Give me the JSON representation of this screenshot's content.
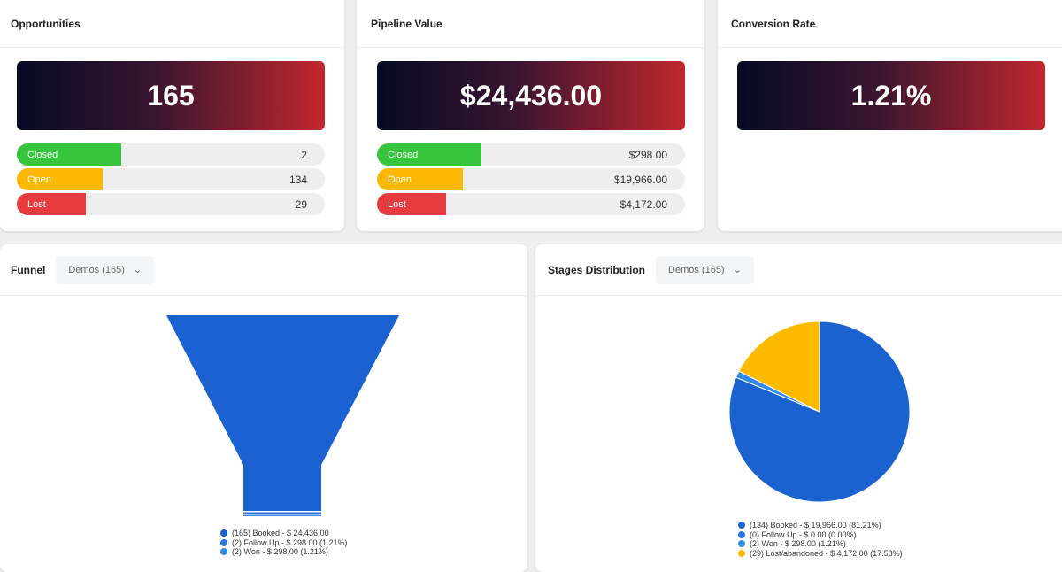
{
  "cards": [
    {
      "title": "Opportunities",
      "value": "165",
      "bars": [
        {
          "label": "Closed",
          "value": "2",
          "fill": 0.34,
          "color": "#36c53c"
        },
        {
          "label": "Open",
          "value": "134",
          "fill": 0.28,
          "color": "#fdb803"
        },
        {
          "label": "Lost",
          "value": "29",
          "fill": 0.225,
          "color": "#e63b3f"
        }
      ]
    },
    {
      "title": "Pipeline Value",
      "value": "$24,436.00",
      "bars": [
        {
          "label": "Closed",
          "value": "$298.00",
          "fill": 0.34,
          "color": "#36c53c"
        },
        {
          "label": "Open",
          "value": "$19,966.00",
          "fill": 0.28,
          "color": "#fdb803"
        },
        {
          "label": "Lost",
          "value": "$4,172.00",
          "fill": 0.225,
          "color": "#e63b3f"
        }
      ]
    },
    {
      "title": "Conversion Rate",
      "value": "1.21%"
    }
  ],
  "funnel": {
    "title": "Funnel",
    "dropdown": "Demos (165)",
    "legend": [
      {
        "text": "(165) Booked - $ 24,436.00",
        "color": "#1a5fcf"
      },
      {
        "text": "(2) Follow Up - $ 298.00 (1.21%)",
        "color": "#2a75e0"
      },
      {
        "text": "(2) Won - $ 298.00 (1.21%)",
        "color": "#3389ea"
      }
    ]
  },
  "stages": {
    "title": "Stages Distribution",
    "dropdown": "Demos (165)",
    "legend": [
      {
        "text": "(134) Booked - $ 19,966.00 (81.21%)",
        "color": "#1a62d0"
      },
      {
        "text": "(0) Follow Up - $ 0.00 (0.00%)",
        "color": "#2a75e0"
      },
      {
        "text": "(2) Won - $ 298.00 (1.21%)",
        "color": "#3389ea"
      },
      {
        "text": "(29) Lost/abandoned - $ 4,172.00 (17.58%)",
        "color": "#fdbb00"
      }
    ]
  },
  "chart_data": [
    {
      "type": "funnel",
      "categories": [
        "Booked",
        "Follow Up",
        "Won"
      ],
      "values": [
        165,
        2,
        2
      ]
    },
    {
      "type": "pie",
      "categories": [
        "Booked",
        "Follow Up",
        "Won",
        "Lost/abandoned"
      ],
      "values": [
        81.21,
        0,
        1.21,
        17.58
      ],
      "colors": [
        "#1a62d0",
        "#2a75e0",
        "#3389ea",
        "#fdbb00"
      ]
    }
  ]
}
